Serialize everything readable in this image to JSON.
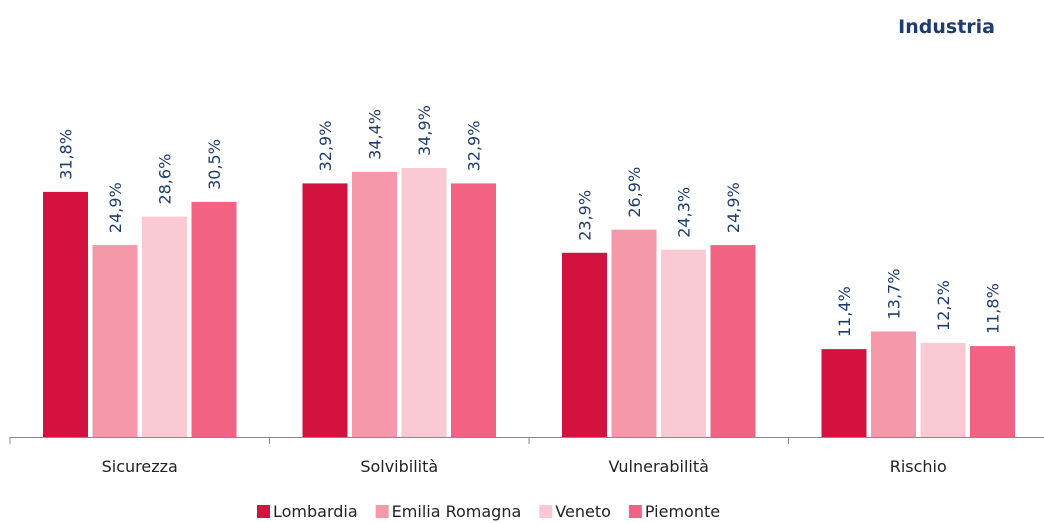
{
  "chart_data": {
    "type": "bar",
    "title": "Industria",
    "categories": [
      "Sicurezza",
      "Solvibilità",
      "Vulnerabilità",
      "Rischio"
    ],
    "series": [
      {
        "name": "Lombardia",
        "color": "#d3123f",
        "values": [
          31.8,
          32.9,
          23.9,
          11.4
        ],
        "value_labels": [
          "31,8%",
          "32,9%",
          "23,9%",
          "11,4%"
        ]
      },
      {
        "name": "Emilia Romagna",
        "color": "#f598a9",
        "values": [
          24.9,
          34.4,
          26.9,
          13.7
        ],
        "value_labels": [
          "24,9%",
          "34,4%",
          "26,9%",
          "13,7%"
        ]
      },
      {
        "name": "Veneto",
        "color": "#fbc9d4",
        "values": [
          28.6,
          34.9,
          24.3,
          12.2
        ],
        "value_labels": [
          "28,6%",
          "34,9%",
          "24,3%",
          "12,2%"
        ]
      },
      {
        "name": "Piemonte",
        "color": "#f26383",
        "values": [
          30.5,
          32.9,
          24.9,
          11.8
        ],
        "value_labels": [
          "30,5%",
          "32,9%",
          "24,9%",
          "11,8%"
        ]
      }
    ]
  }
}
